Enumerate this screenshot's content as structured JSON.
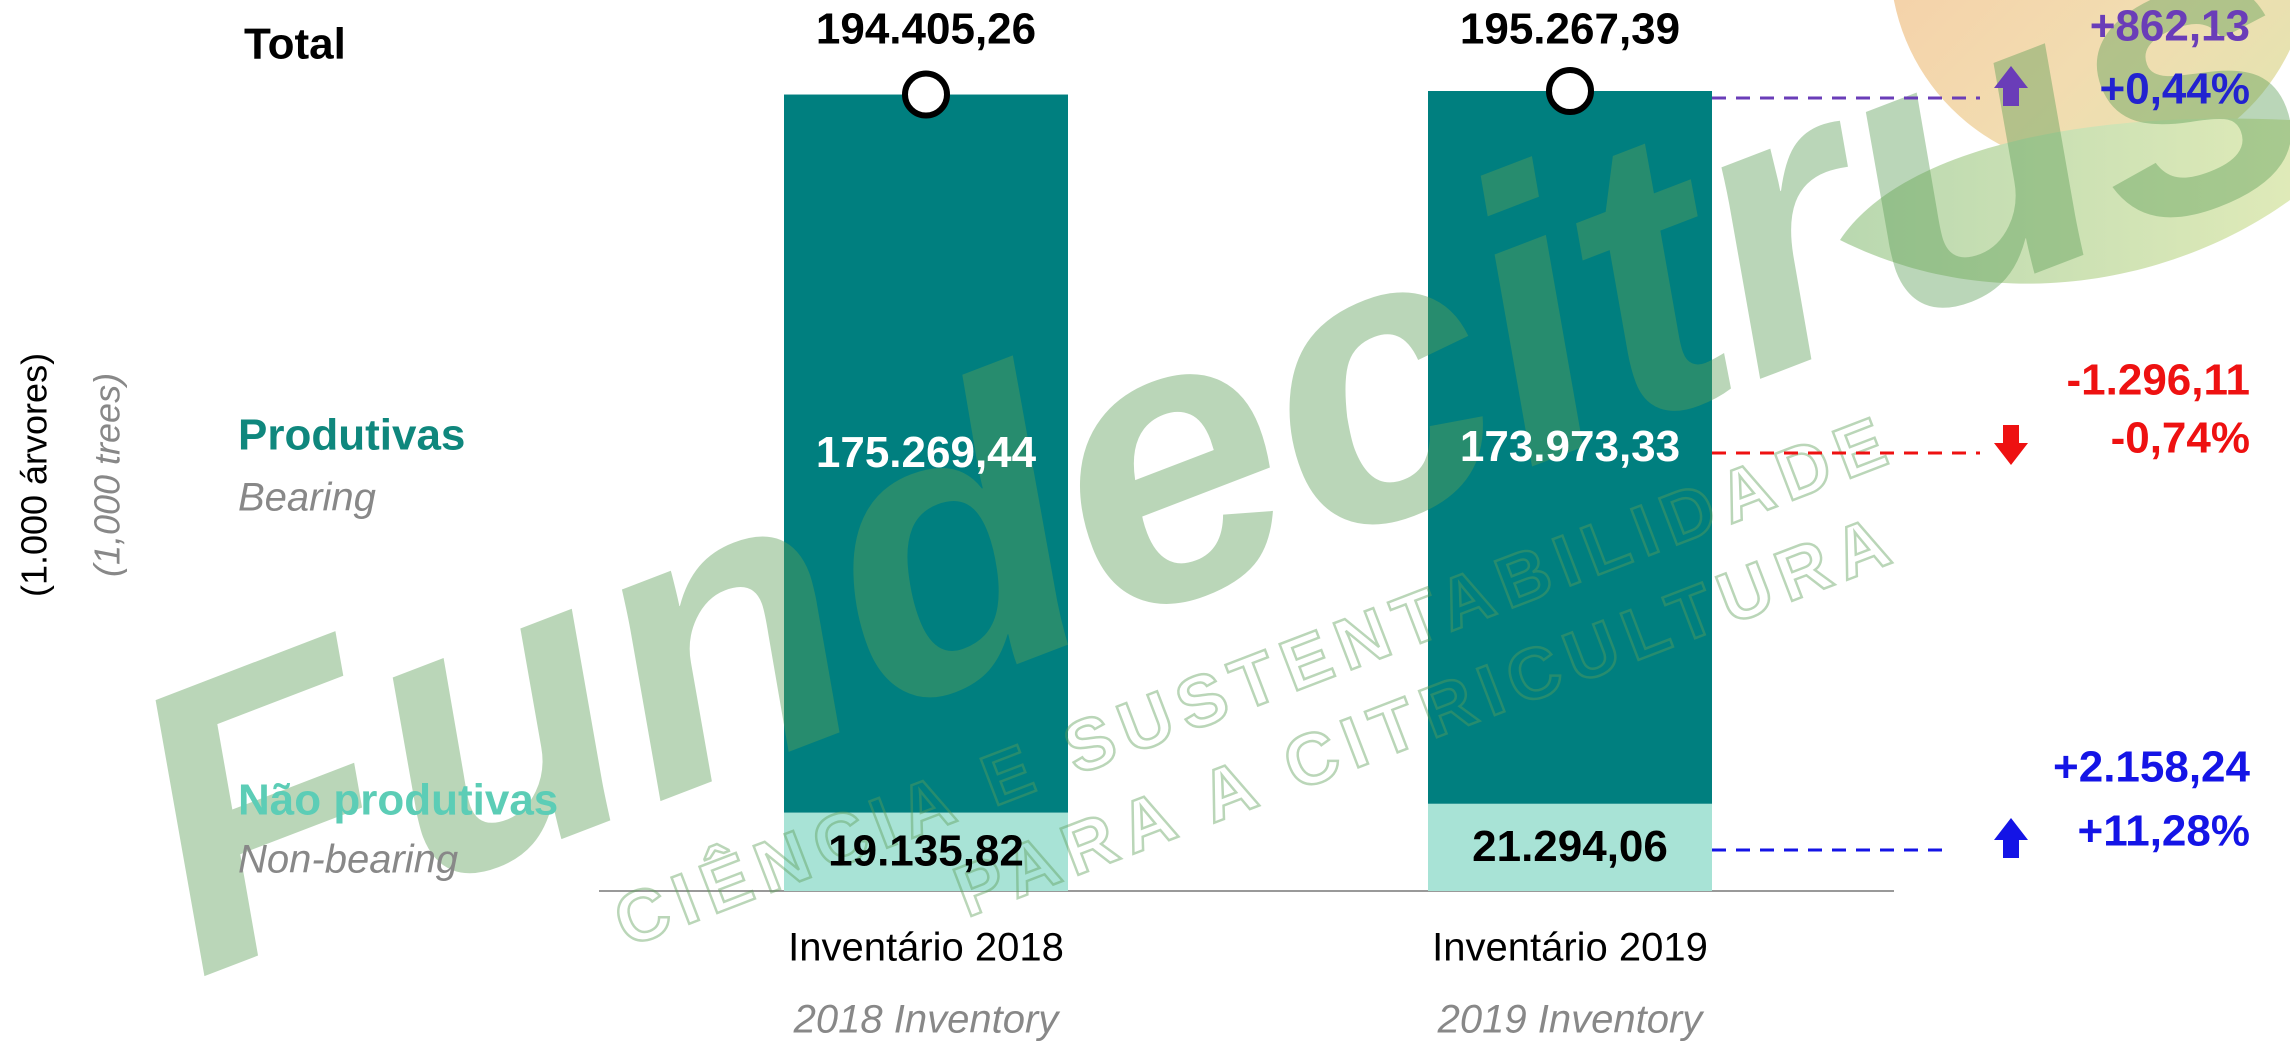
{
  "chart_data": {
    "type": "bar",
    "stacked": true,
    "y_label": "(1.000 árvores)",
    "y_label_en": "(1,000 trees)",
    "categories": [
      "Inventário 2018",
      "Inventário 2019"
    ],
    "categories_en": [
      "2018 Inventory",
      "2019 Inventory"
    ],
    "series": [
      {
        "name": "Não produtivas",
        "name_en": "Non-bearing",
        "color": "#a8e3d6",
        "label_color": "#5ccdb6",
        "text_color": "#000000",
        "values": [
          19135.82,
          21294.06
        ],
        "value_labels": [
          "19.135,82",
          "21.294,06"
        ],
        "change": {
          "value": 2158.24,
          "value_label": "+2.158,24",
          "percent_label": "+11,28%",
          "value_color": "#1414e6",
          "percent_color": "#1414e6"
        }
      },
      {
        "name": "Produtivas",
        "name_en": "Bearing",
        "color": "#007f7f",
        "label_color": "#0f877d",
        "text_color": "#ffffff",
        "values": [
          175269.44,
          173973.33
        ],
        "value_labels": [
          "175.269,44",
          "173.973,33"
        ],
        "change": {
          "value": -1296.11,
          "value_label": "-1.296,11",
          "percent_label": "-0,74%",
          "value_color": "#ee1111",
          "percent_color": "#ee1111"
        }
      }
    ],
    "totals": {
      "name": "Total",
      "values": [
        194405.26,
        195267.39
      ],
      "value_labels": [
        "194.405,26",
        "195.267,39"
      ],
      "change": {
        "value": 862.13,
        "value_label": "+862,13",
        "percent_label": "+0,44%",
        "value_color": "#6a3db8",
        "percent_color": "#2222d0"
      }
    },
    "watermark": {
      "brand": "Fundecitrus",
      "tagline_1": "CIÊNCIA E SUSTENTABILIDADE",
      "tagline_2": "PARA A CITRICULTURA"
    }
  }
}
